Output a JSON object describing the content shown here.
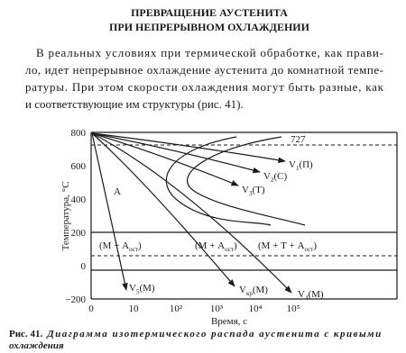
{
  "header": {
    "title_lines": [
      "ПРЕВРАЩЕНИЕ АУСТЕНИТА",
      "ПРИ НЕПРЕРЫВНОМ ОХЛАЖДЕНИИ"
    ]
  },
  "paragraph": {
    "lines": [
      "В реальных условиях при термической обработке, как прави-",
      "ло, идет непрерывное охлаждение аустенита до комнатной темпе-",
      "ратуры. При этом скорости охлаждения могут быть разные, как",
      "и соответствующие им структуры (рис. 41)."
    ]
  },
  "figure": {
    "y_label": "Температура, °C",
    "x_label": "Время, с",
    "y_ticks": [
      "800",
      "600",
      "400",
      "200",
      "0",
      "−200"
    ],
    "x_ticks": [
      "0",
      "10",
      "10²",
      "10³",
      "10⁴",
      "10⁵"
    ],
    "line_label": "727",
    "region_label": "A",
    "zone_labels": [
      {
        "main": "(М + А",
        "sub": "ост",
        "tail": ")"
      },
      {
        "main": "(М + А",
        "sub": "ост",
        "tail": ")"
      },
      {
        "main": "(М + Т + А",
        "sub": "ост",
        "tail": ")"
      }
    ],
    "curve_labels": [
      {
        "main": "V",
        "sub": "1",
        "tail": "(П)"
      },
      {
        "main": "V",
        "sub": "2",
        "tail": "(С)"
      },
      {
        "main": "V",
        "sub": "3",
        "tail": "(Т)"
      },
      {
        "main": "V",
        "sub": "кр",
        "tail": "(М)"
      },
      {
        "main": "V",
        "sub": "4",
        "tail": "(М)"
      },
      {
        "main": "V",
        "sub": "5",
        "tail": "(М)"
      }
    ],
    "caption": {
      "number": "Рис. 41.",
      "text_lines": [
        "Диаграмма изотермического распада аустенита с кривыми",
        "охлаждения"
      ]
    }
  }
}
